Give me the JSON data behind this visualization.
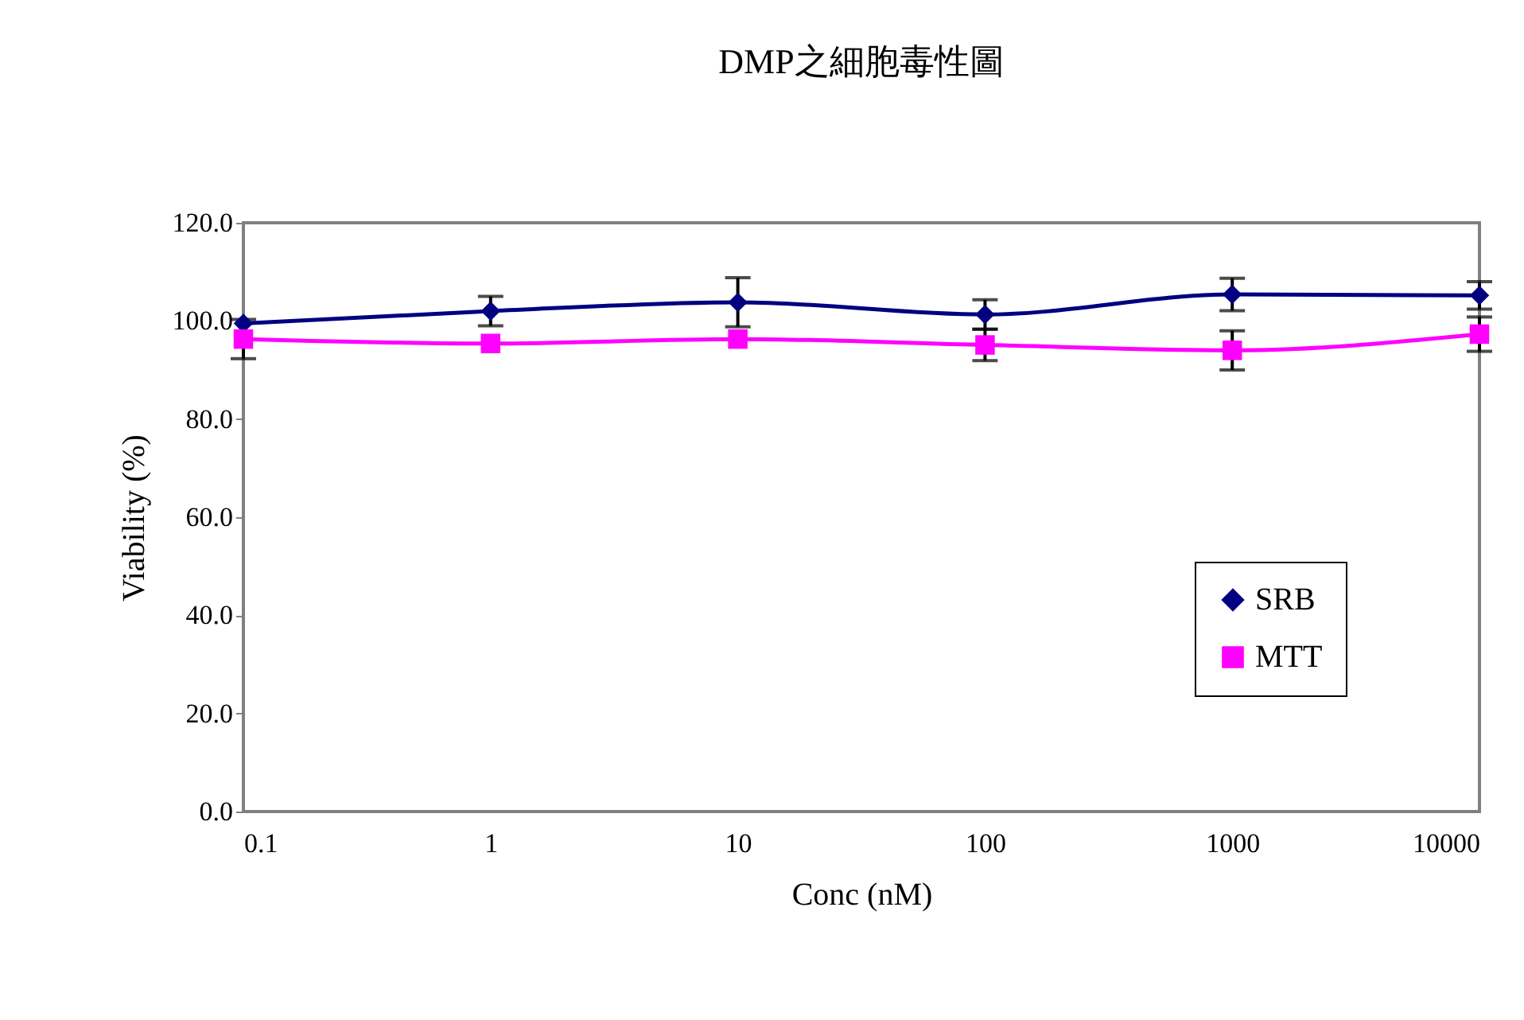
{
  "chart_data": {
    "type": "line",
    "title": "DMP之細胞毒性圖",
    "xlabel": "Conc (nM)",
    "ylabel": "Viability (%)",
    "x": [
      0.1,
      1,
      10,
      100,
      1000,
      10000
    ],
    "log": "x",
    "series": [
      {
        "name": "SRB",
        "color": "#000080",
        "marker": "diamond",
        "values": [
          99.5,
          102,
          103.8,
          101.3,
          105.4,
          105.2
        ],
        "errors": [
          null,
          3,
          5,
          3,
          3.3,
          2.8
        ]
      },
      {
        "name": "MTT",
        "color": "#ff00ff",
        "marker": "square",
        "values": [
          96.3,
          95.4,
          96.3,
          95.1,
          94,
          97.3
        ],
        "errors": [
          4,
          null,
          null,
          3.2,
          4,
          3.5
        ]
      }
    ],
    "xlim": [
      0.1,
      10000
    ],
    "xticks": [
      0.1,
      1,
      10,
      100,
      1000,
      10000
    ],
    "ylim": [
      0,
      120
    ],
    "yticks": [
      {
        "value": 0,
        "label": "0.0"
      },
      {
        "value": 20,
        "label": "20.0"
      },
      {
        "value": 40,
        "label": "40.0"
      },
      {
        "value": 60,
        "label": "60.0"
      },
      {
        "value": 80,
        "label": "80.0"
      },
      {
        "value": 100,
        "label": "100.0"
      },
      {
        "value": 120,
        "label": "120.0"
      }
    ],
    "grid": false,
    "legend": "right",
    "line_style": "solid"
  }
}
